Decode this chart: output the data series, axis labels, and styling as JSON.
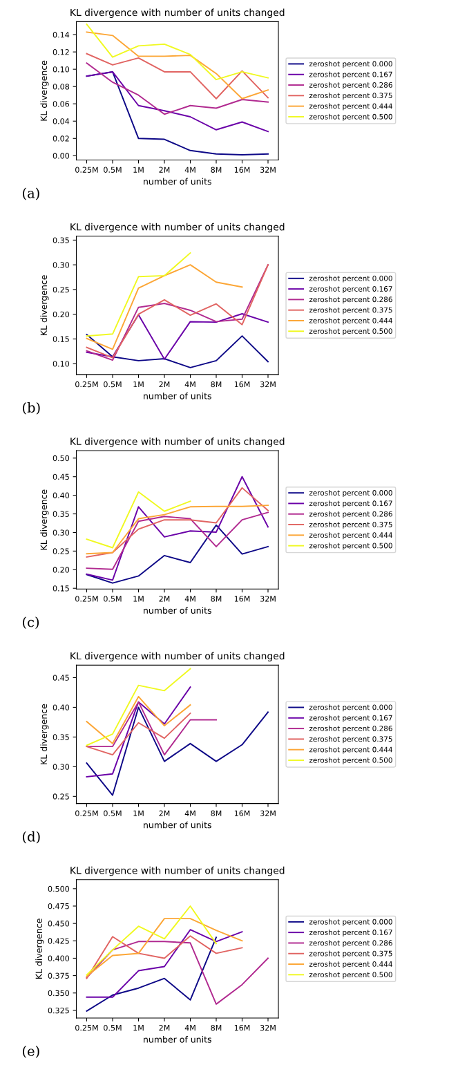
{
  "chart_data": [
    {
      "type": "line",
      "title": "KL divergence with number of units changed",
      "xlabel": "number of units",
      "ylabel": "KL divergence",
      "annotations": [
        "(a)"
      ],
      "categories": [
        "0.25M",
        "0.5M",
        "1M",
        "2M",
        "4M",
        "8M",
        "16M",
        "32M"
      ],
      "ylim": [
        -0.005,
        0.155
      ],
      "yticks": [
        {
          "value": 0,
          "label": "0.00"
        },
        0.02,
        0.04,
        0.06,
        0.08,
        {
          "value": 0.1,
          "label": "0.10"
        },
        0.12,
        0.14
      ],
      "legend": "right",
      "series": [
        {
          "name": "zeroshot percent 0.000",
          "color": "#0d0887",
          "values": [
            0.092,
            0.097,
            0.02,
            0.019,
            0.006,
            0.002,
            0.001,
            0.002
          ]
        },
        {
          "name": "zeroshot percent 0.167",
          "color": "#6a00a8",
          "values": [
            0.092,
            0.097,
            0.058,
            0.052,
            0.045,
            0.03,
            0.039,
            0.028
          ]
        },
        {
          "name": "zeroshot percent 0.286",
          "color": "#b12a90",
          "values": [
            0.107,
            0.085,
            0.07,
            0.048,
            0.058,
            0.055,
            0.065,
            0.062
          ]
        },
        {
          "name": "zeroshot percent 0.375",
          "color": "#e16462",
          "values": [
            0.118,
            0.105,
            0.113,
            0.097,
            0.097,
            0.066,
            0.098,
            0.067
          ]
        },
        {
          "name": "zeroshot percent 0.444",
          "color": "#fca636",
          "values": [
            0.143,
            0.139,
            0.115,
            0.115,
            0.116,
            0.095,
            0.066,
            0.076
          ]
        },
        {
          "name": "zeroshot percent 0.500",
          "color": "#f0f921",
          "values": [
            0.152,
            0.114,
            0.127,
            0.129,
            0.117,
            0.088,
            0.097,
            0.09
          ]
        }
      ]
    },
    {
      "type": "line",
      "title": "KL divergence with number of units changed",
      "xlabel": "number of units",
      "ylabel": "KL divergence",
      "annotations": [
        "(b)"
      ],
      "categories": [
        "0.25M",
        "0.5M",
        "1M",
        "2M",
        "4M",
        "8M",
        "16M",
        "32M"
      ],
      "ylim": [
        0.078,
        0.358
      ],
      "yticks": [
        {
          "value": 0.1,
          "label": "0.10"
        },
        0.15,
        {
          "value": 0.2,
          "label": "0.20"
        },
        0.25,
        {
          "value": 0.3,
          "label": "0.30"
        },
        0.35
      ],
      "legend": "right",
      "series": [
        {
          "name": "zeroshot percent 0.000",
          "color": "#0d0887",
          "values": [
            0.159,
            0.114,
            0.106,
            0.11,
            0.092,
            0.106,
            0.156,
            0.104
          ]
        },
        {
          "name": "zeroshot percent 0.167",
          "color": "#6a00a8",
          "values": [
            0.123,
            0.114,
            0.199,
            0.109,
            0.185,
            0.184,
            0.201,
            0.184
          ]
        },
        {
          "name": "zeroshot percent 0.286",
          "color": "#b12a90",
          "values": [
            0.126,
            0.107,
            0.214,
            0.222,
            0.208,
            0.185,
            0.19,
            0.3
          ]
        },
        {
          "name": "zeroshot percent 0.375",
          "color": "#e16462",
          "values": [
            0.133,
            0.112,
            0.2,
            0.229,
            0.198,
            0.221,
            0.179,
            0.3
          ]
        },
        {
          "name": "zeroshot percent 0.444",
          "color": "#fca636",
          "values": [
            0.151,
            0.129,
            0.253,
            0.278,
            0.3,
            0.265,
            0.255,
            null
          ]
        },
        {
          "name": "zeroshot percent 0.500",
          "color": "#f0f921",
          "values": [
            0.156,
            0.16,
            0.276,
            0.278,
            0.324,
            null,
            null,
            null
          ]
        }
      ]
    },
    {
      "type": "line",
      "title": "KL divergence with number of units changed",
      "xlabel": "number of units",
      "ylabel": "KL divergence",
      "annotations": [
        "(c)"
      ],
      "categories": [
        "0.25M",
        "0.5M",
        "1M",
        "2M",
        "4M",
        "8M",
        "16M",
        "32M"
      ],
      "ylim": [
        0.148,
        0.52
      ],
      "yticks": [
        0.15,
        {
          "value": 0.2,
          "label": "0.20"
        },
        0.25,
        {
          "value": 0.3,
          "label": "0.30"
        },
        0.35,
        {
          "value": 0.4,
          "label": "0.40"
        },
        0.45,
        {
          "value": 0.5,
          "label": "0.50"
        }
      ],
      "legend": "right",
      "series": [
        {
          "name": "zeroshot percent 0.000",
          "color": "#0d0887",
          "values": [
            0.187,
            0.164,
            0.183,
            0.238,
            0.219,
            0.32,
            0.242,
            0.262
          ]
        },
        {
          "name": "zeroshot percent 0.167",
          "color": "#6a00a8",
          "values": [
            0.188,
            0.172,
            0.369,
            0.288,
            0.304,
            0.301,
            0.45,
            0.315
          ]
        },
        {
          "name": "zeroshot percent 0.286",
          "color": "#b12a90",
          "values": [
            0.204,
            0.201,
            0.33,
            0.343,
            0.337,
            0.262,
            0.334,
            0.354
          ]
        },
        {
          "name": "zeroshot percent 0.375",
          "color": "#e16462",
          "values": [
            0.234,
            0.246,
            0.309,
            0.334,
            0.334,
            0.326,
            0.42,
            0.359
          ]
        },
        {
          "name": "zeroshot percent 0.444",
          "color": "#fca636",
          "values": [
            0.243,
            0.246,
            0.337,
            0.348,
            0.369,
            0.37,
            0.37,
            0.373
          ]
        },
        {
          "name": "zeroshot percent 0.500",
          "color": "#f0f921",
          "values": [
            0.282,
            0.259,
            0.409,
            0.357,
            0.384,
            null,
            null,
            null
          ]
        }
      ]
    },
    {
      "type": "line",
      "title": "KL divergence with number of units changed",
      "xlabel": "number of units",
      "ylabel": "KL divergence",
      "annotations": [
        "(d)"
      ],
      "categories": [
        "0.25M",
        "0.5M",
        "1M",
        "2M",
        "4M",
        "8M",
        "16M",
        "32M"
      ],
      "ylim": [
        0.238,
        0.471
      ],
      "yticks": [
        0.25,
        {
          "value": 0.3,
          "label": "0.30"
        },
        0.35,
        {
          "value": 0.4,
          "label": "0.40"
        },
        0.45
      ],
      "legend": "right",
      "series": [
        {
          "name": "zeroshot percent 0.000",
          "color": "#0d0887",
          "values": [
            0.306,
            0.252,
            0.4,
            0.309,
            0.339,
            0.309,
            0.337,
            0.392
          ]
        },
        {
          "name": "zeroshot percent 0.167",
          "color": "#6a00a8",
          "values": [
            0.283,
            0.288,
            0.409,
            0.372,
            0.434,
            null,
            null,
            null
          ]
        },
        {
          "name": "zeroshot percent 0.286",
          "color": "#b12a90",
          "values": [
            0.334,
            0.334,
            0.409,
            0.32,
            0.379,
            0.379,
            null,
            null
          ]
        },
        {
          "name": "zeroshot percent 0.375",
          "color": "#e16462",
          "values": [
            0.334,
            0.32,
            0.374,
            0.348,
            0.39,
            null,
            null,
            null
          ]
        },
        {
          "name": "zeroshot percent 0.444",
          "color": "#fca636",
          "values": [
            0.376,
            0.339,
            0.418,
            0.369,
            0.404,
            null,
            null,
            null
          ]
        },
        {
          "name": "zeroshot percent 0.500",
          "color": "#f0f921",
          "values": [
            0.336,
            0.355,
            0.437,
            0.428,
            0.465,
            null,
            null,
            null
          ]
        }
      ]
    },
    {
      "type": "line",
      "title": "KL divergence with number of units changed",
      "xlabel": "number of units",
      "ylabel": "KL divergence",
      "annotations": [
        "(e)"
      ],
      "categories": [
        "0.25M",
        "0.5M",
        "1M",
        "2M",
        "4M",
        "8M",
        "16M",
        "32M"
      ],
      "ylim": [
        0.314,
        0.513
      ],
      "yticks": [
        0.325,
        {
          "value": 0.35,
          "label": "0.350"
        },
        0.375,
        {
          "value": 0.4,
          "label": "0.400"
        },
        0.425,
        {
          "value": 0.45,
          "label": "0.450"
        },
        0.475,
        {
          "value": 0.5,
          "label": "0.500"
        }
      ],
      "legend": "right",
      "series": [
        {
          "name": "zeroshot percent 0.000",
          "color": "#0d0887",
          "values": [
            0.324,
            0.347,
            0.357,
            0.371,
            0.34,
            0.43,
            null,
            null
          ]
        },
        {
          "name": "zeroshot percent 0.167",
          "color": "#6a00a8",
          "values": [
            0.344,
            0.344,
            0.382,
            0.388,
            0.441,
            0.424,
            0.438,
            null
          ]
        },
        {
          "name": "zeroshot percent 0.286",
          "color": "#b12a90",
          "values": [
            0.372,
            0.412,
            0.424,
            0.424,
            0.422,
            0.334,
            0.362,
            0.4
          ]
        },
        {
          "name": "zeroshot percent 0.375",
          "color": "#e16462",
          "values": [
            0.371,
            0.431,
            0.407,
            0.4,
            0.432,
            0.407,
            0.415,
            null
          ]
        },
        {
          "name": "zeroshot percent 0.444",
          "color": "#fca636",
          "values": [
            0.374,
            0.404,
            0.407,
            0.457,
            0.457,
            0.44,
            0.425,
            null
          ]
        },
        {
          "name": "zeroshot percent 0.500",
          "color": "#f0f921",
          "values": [
            0.376,
            0.412,
            0.446,
            0.428,
            0.475,
            0.421,
            null,
            null
          ]
        }
      ]
    }
  ]
}
